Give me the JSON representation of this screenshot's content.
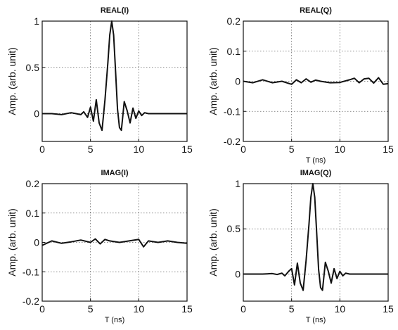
{
  "chart_data": [
    {
      "type": "line",
      "title": "REAL(I)",
      "xlabel": "",
      "ylabel": "Amp. (arb. unit)",
      "xlim": [
        0,
        15
      ],
      "ylim": [
        -0.3,
        1
      ],
      "xticks": [
        "0",
        "5",
        "10",
        "15"
      ],
      "yticks": [
        "0",
        "0.5",
        "1"
      ],
      "grid": true,
      "series": [
        {
          "x": [
            0,
            1,
            2,
            3,
            3.5,
            4,
            4.3,
            4.7,
            5,
            5.3,
            5.6,
            5.9,
            6.2,
            6.5,
            6.8,
            7.0,
            7.2,
            7.4,
            7.6,
            7.8,
            8.0,
            8.2,
            8.5,
            8.8,
            9.1,
            9.4,
            9.7,
            10.0,
            10.3,
            10.6,
            11,
            12,
            13,
            14,
            15
          ],
          "y": [
            0,
            0,
            -0.01,
            0.01,
            0,
            -0.01,
            0.02,
            -0.04,
            0.07,
            -0.08,
            0.15,
            -0.1,
            -0.18,
            0.15,
            0.55,
            0.85,
            1.0,
            0.85,
            0.45,
            0.05,
            -0.15,
            -0.18,
            0.13,
            0.03,
            -0.1,
            0.06,
            -0.05,
            0.03,
            -0.02,
            0.01,
            0,
            0,
            0,
            0,
            0
          ]
        }
      ]
    },
    {
      "type": "line",
      "title": "REAL(Q)",
      "xlabel": "T (ns)",
      "ylabel": "Amp. (arb. unit)",
      "xlim": [
        0,
        15
      ],
      "ylim": [
        -0.2,
        0.2
      ],
      "xticks": [
        "0",
        "5",
        "10",
        "15"
      ],
      "yticks": [
        "0.2",
        "0.1",
        "0",
        "-0.1",
        "-0.2"
      ],
      "grid": true,
      "series": [
        {
          "x": [
            0,
            1,
            2,
            3,
            4,
            5,
            5.5,
            6,
            6.5,
            7,
            7.5,
            8,
            9,
            10,
            11,
            11.5,
            12,
            12.5,
            13,
            13.5,
            14,
            14.5,
            15
          ],
          "y": [
            0,
            -0.005,
            0.005,
            -0.005,
            0,
            -0.01,
            0.005,
            -0.005,
            0.008,
            -0.003,
            0.004,
            0,
            -0.005,
            -0.004,
            0.005,
            0.01,
            -0.005,
            0.008,
            0.01,
            -0.006,
            0.012,
            -0.01,
            -0.008
          ]
        }
      ]
    },
    {
      "type": "line",
      "title": "IMAG(I)",
      "xlabel": "T (ns)",
      "ylabel": "Amp. (arb. unit)",
      "xlim": [
        0,
        15
      ],
      "ylim": [
        -0.2,
        0.2
      ],
      "xticks": [
        "0",
        "5",
        "10",
        "15"
      ],
      "yticks": [
        "0.2",
        "0.1",
        "0",
        "-0.1",
        "-0.2"
      ],
      "grid": true,
      "series": [
        {
          "x": [
            0,
            1,
            2,
            3,
            4,
            5,
            5.5,
            6,
            6.5,
            7,
            8,
            9,
            10,
            10.5,
            11,
            12,
            13,
            14,
            15
          ],
          "y": [
            -0.01,
            0.005,
            -0.003,
            0.002,
            0.008,
            0,
            0.012,
            -0.005,
            0.01,
            0.005,
            0,
            0.005,
            0.01,
            -0.015,
            0.005,
            0,
            0.005,
            0,
            -0.003
          ]
        }
      ]
    },
    {
      "type": "line",
      "title": "IMAG(Q)",
      "xlabel": "T (ns)",
      "ylabel": "Amp. (arb. unit)",
      "xlim": [
        0,
        15
      ],
      "ylim": [
        -0.3,
        1
      ],
      "xticks": [
        "0",
        "5",
        "10",
        "15"
      ],
      "yticks": [
        "0",
        "0.5",
        "1"
      ],
      "grid": true,
      "series": [
        {
          "x": [
            0,
            1,
            2,
            3,
            3.5,
            4,
            4.3,
            4.7,
            5,
            5.3,
            5.6,
            5.9,
            6.2,
            6.5,
            6.8,
            7.0,
            7.2,
            7.4,
            7.6,
            7.8,
            8.0,
            8.2,
            8.5,
            8.8,
            9.1,
            9.4,
            9.7,
            10.0,
            10.3,
            10.6,
            11,
            12,
            13,
            14,
            15
          ],
          "y": [
            0,
            0,
            0,
            0.005,
            -0.005,
            0.01,
            -0.02,
            0.03,
            0.06,
            -0.12,
            0.12,
            -0.1,
            -0.18,
            0.15,
            0.55,
            0.85,
            1.0,
            0.85,
            0.45,
            0.05,
            -0.15,
            -0.18,
            0.13,
            0.03,
            -0.1,
            0.06,
            -0.05,
            0.03,
            -0.02,
            0.01,
            0,
            0,
            0,
            0,
            0
          ]
        }
      ]
    }
  ]
}
